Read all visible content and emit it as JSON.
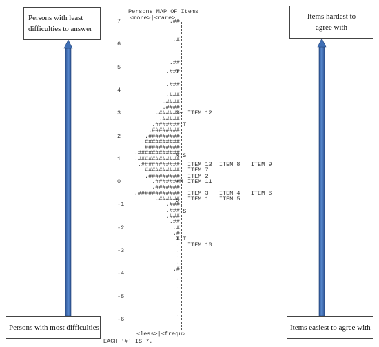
{
  "boxes": {
    "top_left": [
      "Persons with least",
      "difficulties to answer"
    ],
    "top_right": [
      "Items hardest to",
      "agree with"
    ],
    "bottom_left": "Persons with most difficulties",
    "bottom_right": "Items easiest to agree with"
  },
  "arrow_color": "#3f6fb5",
  "map": {
    "title": "Persons MAP OF Items",
    "header": "<more>|<rare>",
    "footer_axis": "<less>|<frequ>",
    "footer_note": "EACH '#' IS 7.",
    "y_ticks": [
      "7",
      "6",
      "5",
      "4",
      "3",
      "2",
      "1",
      "0",
      "-1",
      "-2",
      "-3",
      "-4",
      "-5",
      "-6"
    ],
    "y_tick_values": [
      7,
      6,
      5,
      4,
      3,
      2,
      1,
      0,
      -1,
      -2,
      -3,
      -4,
      -5,
      -6
    ],
    "histogram": [
      {
        "y": 7.0,
        "t": ".##"
      },
      {
        "y": 6.2,
        "t": ".#"
      },
      {
        "y": 5.2,
        "t": ".##"
      },
      {
        "y": 4.8,
        "t": ".###"
      },
      {
        "y": 4.25,
        "t": ".###"
      },
      {
        "y": 3.8,
        "t": ".###"
      },
      {
        "y": 3.5,
        "t": ".####"
      },
      {
        "y": 3.25,
        "t": ".####"
      },
      {
        "y": 3.0,
        "t": ".######"
      },
      {
        "y": 2.75,
        "t": ".#####"
      },
      {
        "y": 2.5,
        "t": ".#######"
      },
      {
        "y": 2.25,
        "t": ".########"
      },
      {
        "y": 2.0,
        "t": ".#########"
      },
      {
        "y": 1.75,
        "t": ".##########"
      },
      {
        "y": 1.5,
        "t": "##########"
      },
      {
        "y": 1.25,
        "t": ".############"
      },
      {
        "y": 1.0,
        "t": ".############"
      },
      {
        "y": 0.75,
        "t": ".###########"
      },
      {
        "y": 0.5,
        "t": ".##########"
      },
      {
        "y": 0.25,
        "t": ".#########"
      },
      {
        "y": 0.0,
        "t": ".#######"
      },
      {
        "y": -0.25,
        "t": ".#######"
      },
      {
        "y": -0.5,
        "t": ".############"
      },
      {
        "y": -0.75,
        "t": ".######"
      },
      {
        "y": -1.0,
        "t": ".###"
      },
      {
        "y": -1.25,
        "t": ".###"
      },
      {
        "y": -1.5,
        "t": ".###"
      },
      {
        "y": -1.75,
        "t": ".##"
      },
      {
        "y": -2.0,
        "t": ".#"
      },
      {
        "y": -2.25,
        "t": ".#"
      },
      {
        "y": -2.5,
        "t": "#"
      },
      {
        "y": -2.75,
        "t": "."
      },
      {
        "y": -3.0,
        "t": "."
      },
      {
        "y": -3.25,
        "t": "."
      },
      {
        "y": -3.5,
        "t": "."
      },
      {
        "y": -3.8,
        "t": ".#"
      },
      {
        "y": -4.2,
        "t": "."
      },
      {
        "y": -4.6,
        "t": "."
      },
      {
        "y": -5.8,
        "t": "."
      }
    ],
    "markers": [
      {
        "y": 4.8,
        "t": "T|"
      },
      {
        "y": 3.0,
        "t": "S+"
      },
      {
        "y": 2.5,
        "t": " |T"
      },
      {
        "y": 1.15,
        "t": "M|S"
      },
      {
        "y": 0.0,
        "t": "+M"
      },
      {
        "y": -0.8,
        "t": "S|"
      },
      {
        "y": -1.3,
        "t": " |S"
      },
      {
        "y": -2.5,
        "t": "T|T"
      }
    ],
    "items": [
      {
        "y": 3.0,
        "t": "ITEM 12"
      },
      {
        "y": 0.75,
        "t": "ITEM 13  ITEM 8   ITEM 9"
      },
      {
        "y": 0.5,
        "t": "ITEM 7"
      },
      {
        "y": 0.25,
        "t": "ITEM 2"
      },
      {
        "y": 0.0,
        "t": "ITEM 11"
      },
      {
        "y": -0.5,
        "t": "ITEM 3   ITEM 4   ITEM 6"
      },
      {
        "y": -0.75,
        "t": "ITEM 1   ITEM 5"
      },
      {
        "y": -2.75,
        "t": "ITEM 10"
      }
    ]
  }
}
